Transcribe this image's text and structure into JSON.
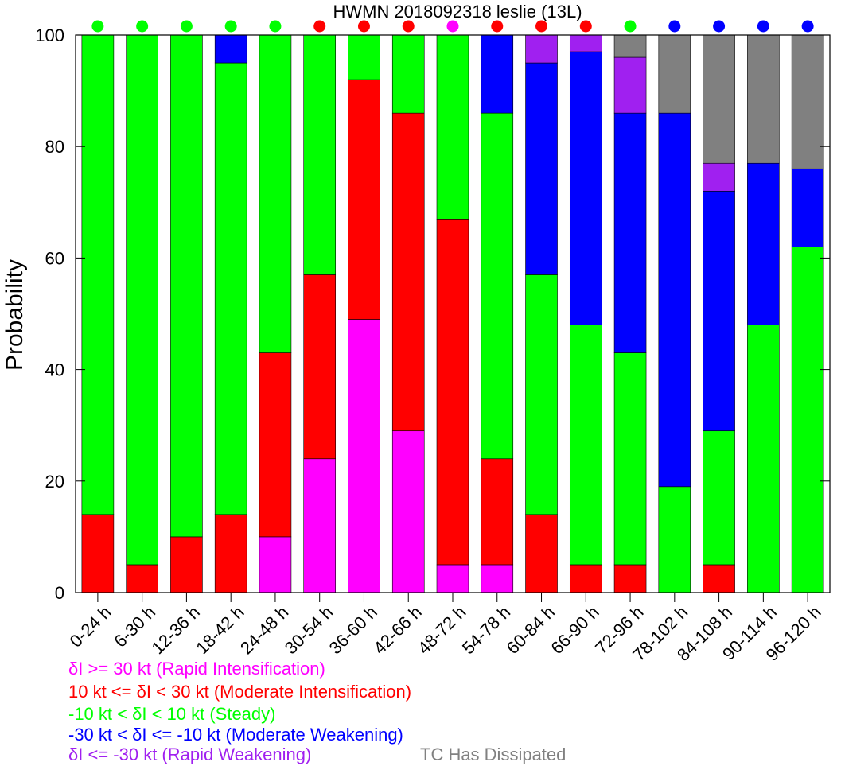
{
  "chart_data": {
    "type": "bar",
    "stacked": true,
    "title": "HWMN 2018092318 leslie (13L)",
    "ylabel": "Probability",
    "ylim": [
      0,
      100
    ],
    "yticks": [
      0,
      20,
      40,
      60,
      80,
      100
    ],
    "categories": [
      "0-24 h",
      "6-30 h",
      "12-36 h",
      "18-42 h",
      "24-48 h",
      "30-54 h",
      "36-60 h",
      "42-66 h",
      "48-72 h",
      "54-78 h",
      "60-84 h",
      "66-90 h",
      "72-96 h",
      "78-102 h",
      "84-108 h",
      "90-114 h",
      "96-120 h"
    ],
    "series": [
      {
        "key": "ri",
        "color": "#ff00ff",
        "values": [
          0,
          0,
          0,
          0,
          10,
          24,
          49,
          29,
          5,
          5,
          0,
          0,
          0,
          0,
          0,
          0,
          0
        ]
      },
      {
        "key": "mi",
        "color": "#ff0000",
        "values": [
          14,
          5,
          10,
          14,
          33,
          33,
          43,
          57,
          62,
          19,
          14,
          5,
          5,
          0,
          5,
          0,
          0
        ]
      },
      {
        "key": "st",
        "color": "#00ff00",
        "values": [
          86,
          95,
          90,
          81,
          57,
          43,
          8,
          14,
          33,
          62,
          43,
          43,
          38,
          19,
          24,
          48,
          62
        ]
      },
      {
        "key": "mw",
        "color": "#0000ff",
        "values": [
          0,
          0,
          0,
          5,
          0,
          0,
          0,
          0,
          0,
          14,
          38,
          49,
          43,
          67,
          43,
          29,
          14
        ]
      },
      {
        "key": "rw",
        "color": "#a020f0",
        "values": [
          0,
          0,
          0,
          0,
          0,
          0,
          0,
          0,
          0,
          0,
          5,
          3,
          10,
          0,
          5,
          0,
          0
        ]
      },
      {
        "key": "td",
        "color": "#808080",
        "values": [
          0,
          0,
          0,
          0,
          0,
          0,
          0,
          0,
          0,
          0,
          0,
          0,
          4,
          14,
          23,
          23,
          24
        ]
      }
    ],
    "dots": [
      "st",
      "st",
      "st",
      "st",
      "st",
      "mi",
      "mi",
      "mi",
      "ri",
      "mi",
      "mi",
      "mi",
      "st",
      "mw",
      "mw",
      "mw",
      "mw"
    ],
    "legend": [
      {
        "key": "ri",
        "label": "δI >= 30 kt (Rapid Intensification)",
        "color": "#ff00ff"
      },
      {
        "key": "mi",
        "label": "10 kt <= δI < 30 kt (Moderate Intensification)",
        "color": "#ff0000"
      },
      {
        "key": "st",
        "label": "-10 kt < δI < 10 kt (Steady)",
        "color": "#00ff00"
      },
      {
        "key": "mw",
        "label": "-30 kt < δI <= -10 kt (Moderate Weakening)",
        "color": "#0000ff"
      },
      {
        "key": "rw",
        "label": "δI <= -30 kt (Rapid Weakening)",
        "color": "#a020f0"
      },
      {
        "key": "td",
        "label": "TC Has Dissipated",
        "color": "#808080"
      }
    ]
  }
}
